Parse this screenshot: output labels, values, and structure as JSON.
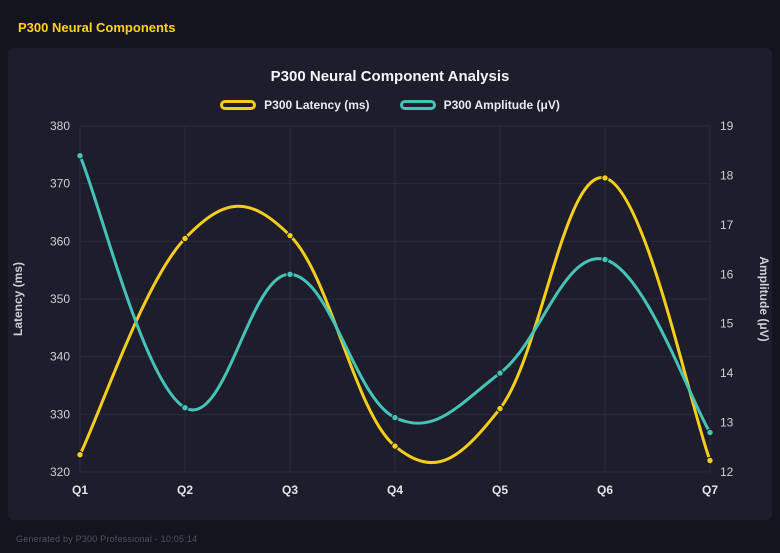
{
  "page": {
    "title": "P300 Neural Components",
    "footer": "Generated by P300 Professional - 10:05:14"
  },
  "chart_data": {
    "type": "line",
    "title": "P300 Neural Component Analysis",
    "categories": [
      "Q1",
      "Q2",
      "Q3",
      "Q4",
      "Q5",
      "Q6",
      "Q7"
    ],
    "series": [
      {
        "name": "P300 Latency (ms)",
        "axis": "left",
        "color": "#f5ce1b",
        "values": [
          323,
          360.5,
          361,
          324.5,
          331,
          371,
          322
        ]
      },
      {
        "name": "P300 Amplitude (μV)",
        "axis": "right",
        "color": "#46c3b8",
        "values": [
          18.4,
          13.3,
          16,
          13.1,
          14,
          16.3,
          12.8
        ]
      }
    ],
    "left_axis": {
      "label": "Latency (ms)",
      "min": 320,
      "max": 380,
      "step": 10
    },
    "right_axis": {
      "label": "Amplitude (μV)",
      "min": 12,
      "max": 19,
      "step": 1
    },
    "grid": true,
    "legend_position": "top",
    "colors": {
      "background": "#14141e",
      "panel": "#1d1d2b",
      "gridline": "#2a2a3c",
      "tick_text": "#ccd0da",
      "category_text": "#e2e5ec",
      "title_text": "#f3f5f9",
      "header_text": "#ffd31a",
      "footer_text": "#4e5161"
    }
  }
}
